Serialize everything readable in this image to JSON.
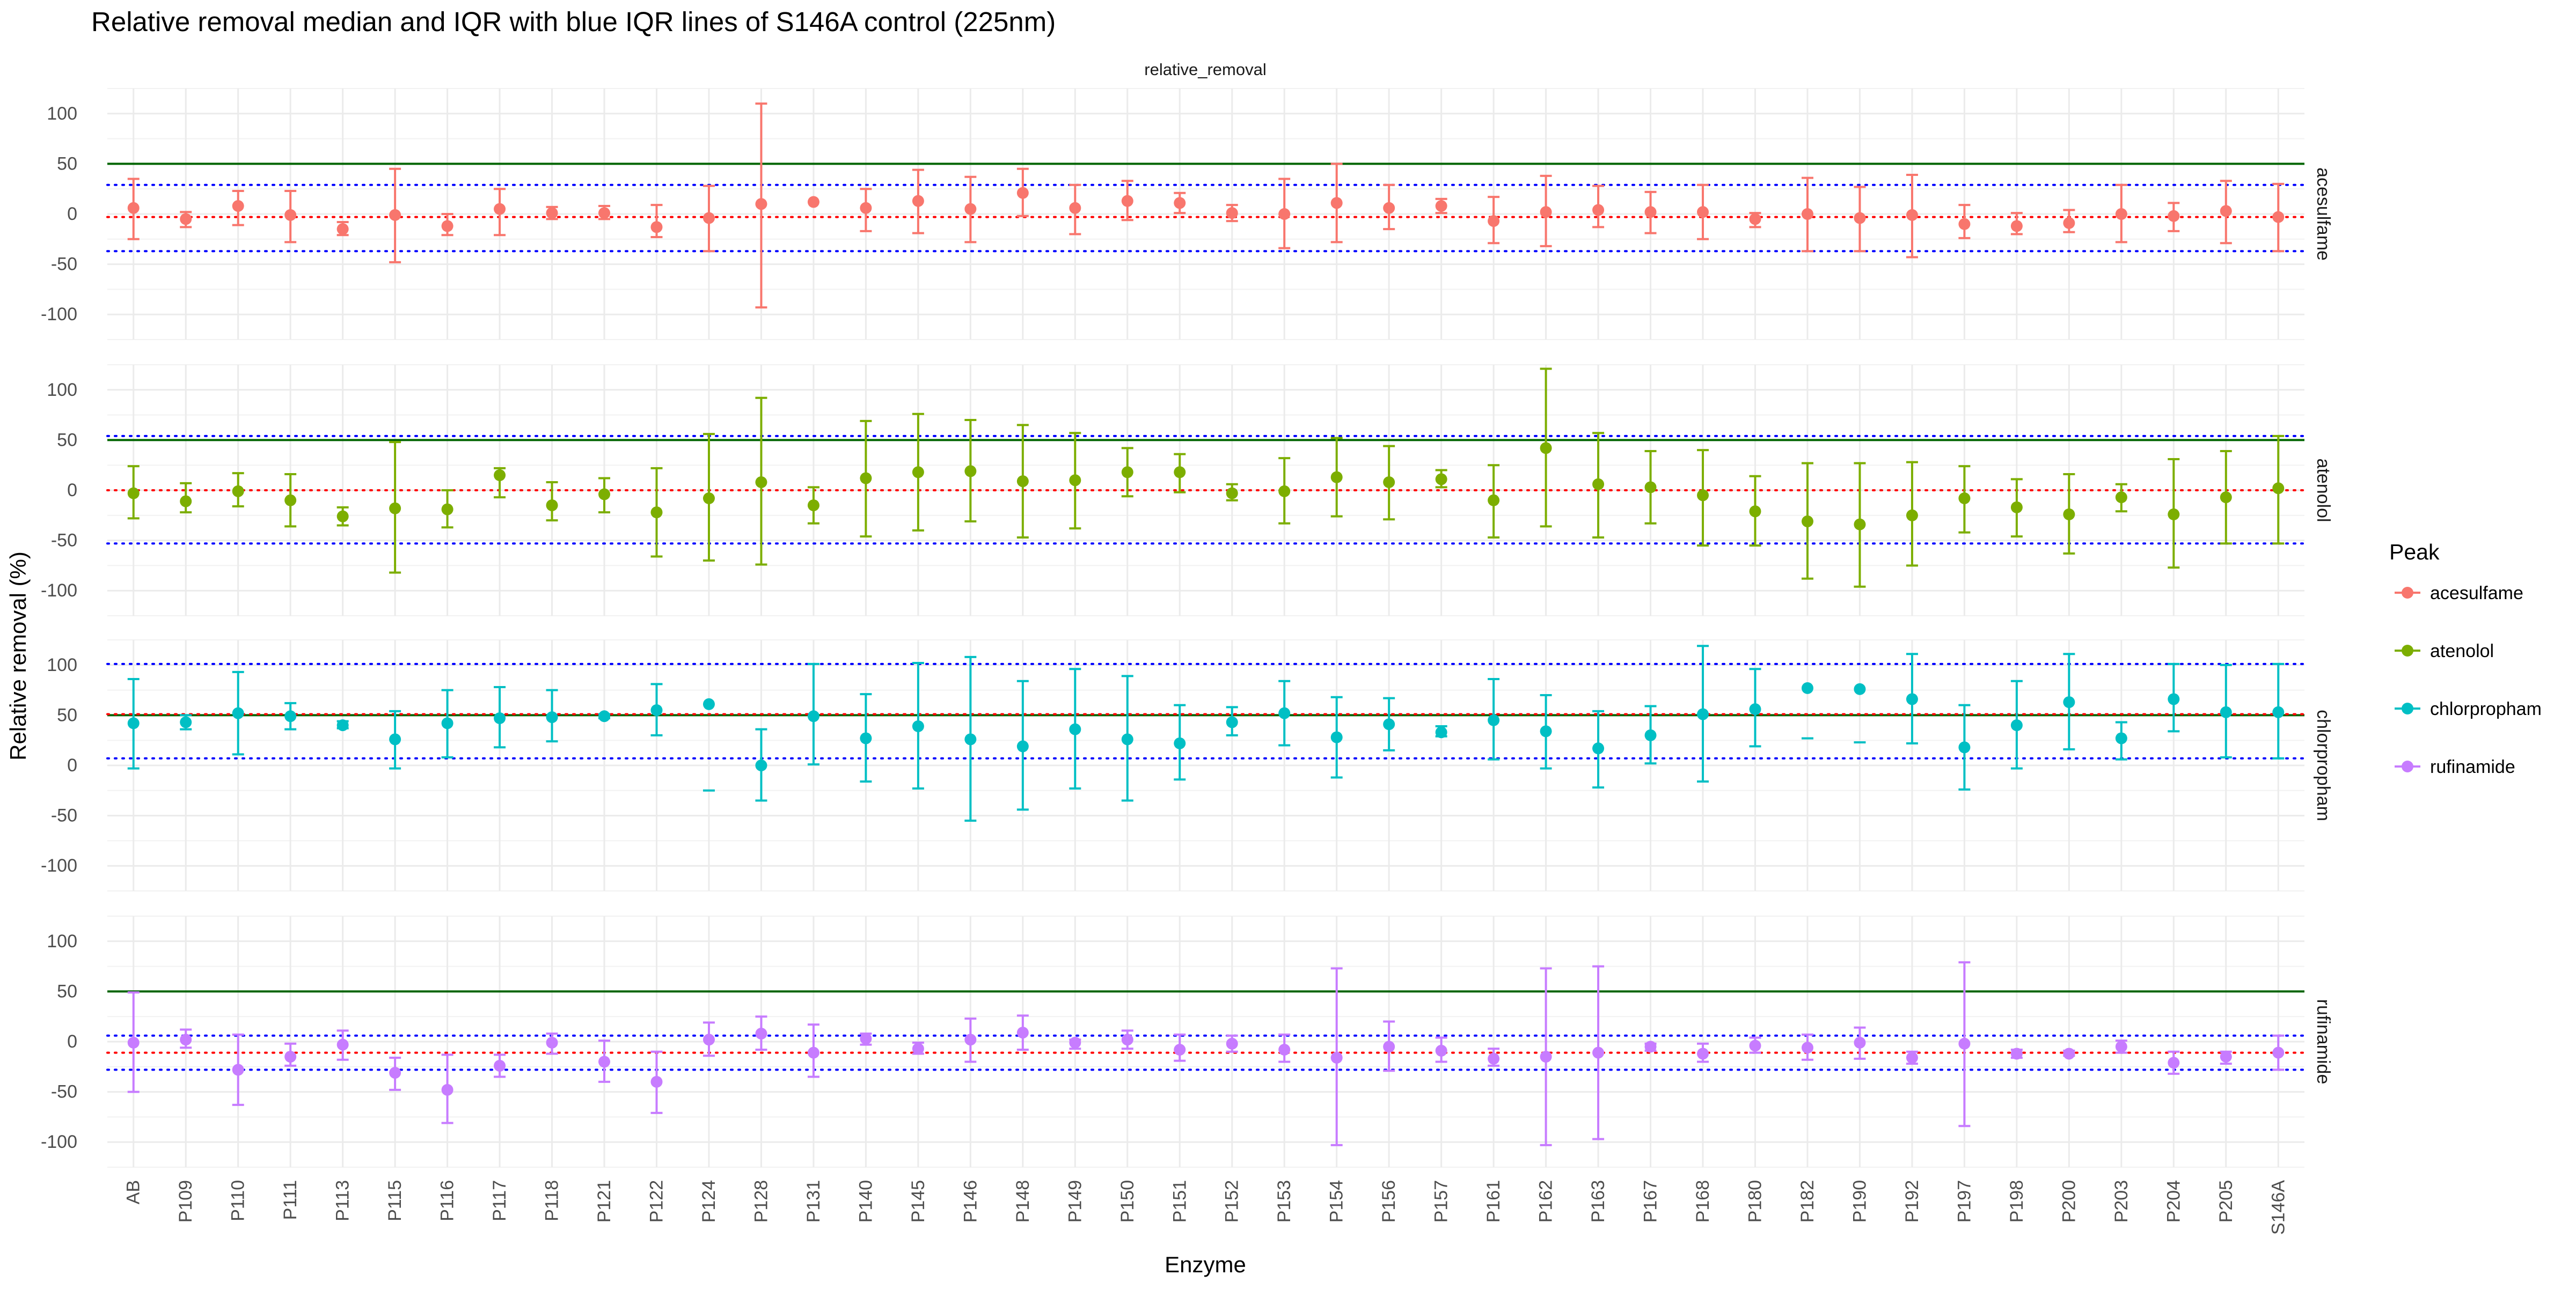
{
  "chart_data": {
    "type": "errorbar",
    "title": "Relative removal median and IQR with blue IQR lines of S146A control (225nm)",
    "facet_strip_top": "relative_removal",
    "xlabel": "Enzyme",
    "ylabel": "Relative removal (%)",
    "ylim": [
      -125,
      125
    ],
    "y_ticks": [
      -100,
      -50,
      0,
      50,
      100
    ],
    "grid": true,
    "legend": {
      "title": "Peak",
      "position": "right"
    },
    "categories": [
      "AB",
      "P109",
      "P110",
      "P111",
      "P113",
      "P115",
      "P116",
      "P117",
      "P118",
      "P121",
      "P122",
      "P124",
      "P128",
      "P131",
      "P140",
      "P145",
      "P146",
      "P148",
      "P149",
      "P150",
      "P151",
      "P152",
      "P153",
      "P154",
      "P156",
      "P157",
      "P161",
      "P162",
      "P163",
      "P167",
      "P168",
      "P180",
      "P182",
      "P190",
      "P192",
      "P197",
      "P198",
      "P200",
      "P203",
      "P204",
      "P205",
      "S146A"
    ],
    "series": [
      {
        "name": "acesulfame",
        "color": "#F8766D",
        "median": [
          6,
          -5,
          8,
          -1,
          -15,
          -1,
          -12,
          5,
          1,
          1,
          -13,
          -4,
          10,
          12,
          6,
          13,
          5,
          21,
          6,
          13,
          11,
          1,
          0,
          11,
          6,
          8,
          -7,
          2,
          4,
          2,
          2,
          -5,
          0,
          -4,
          -1,
          -10,
          -12,
          -9,
          0,
          -2,
          3,
          -3
        ],
        "lower": [
          -25,
          -13,
          -11,
          -28,
          -21,
          -48,
          -21,
          -21,
          -5,
          -5,
          -23,
          -37,
          -93,
          null,
          -17,
          -19,
          -28,
          -2,
          -20,
          -6,
          1,
          -7,
          -34,
          -28,
          -15,
          1,
          -29,
          -32,
          -13,
          -19,
          -25,
          -13,
          -37,
          -37,
          -43,
          -24,
          -20,
          -18,
          -28,
          -17,
          -29,
          -37
        ],
        "upper": [
          35,
          2,
          23,
          23,
          -8,
          45,
          0,
          25,
          7,
          8,
          9,
          28,
          110,
          null,
          25,
          44,
          37,
          45,
          29,
          33,
          21,
          9,
          35,
          50,
          29,
          15,
          17,
          38,
          28,
          22,
          29,
          1,
          36,
          27,
          39,
          9,
          1,
          4,
          29,
          11,
          33,
          30
        ],
        "hline_red": -3,
        "iqr_low": -37,
        "iqr_high": 29,
        "ref_green": 50
      },
      {
        "name": "atenolol",
        "color": "#7CAE00",
        "median": [
          -3,
          -11,
          -1,
          -10,
          -26,
          -18,
          -19,
          15,
          -15,
          -4,
          -22,
          -8,
          8,
          -15,
          12,
          18,
          19,
          9,
          10,
          18,
          18,
          -3,
          -1,
          13,
          8,
          11,
          -10,
          42,
          6,
          3,
          -5,
          -21,
          -31,
          -34,
          -25,
          -8,
          -17,
          -24,
          -7,
          -24,
          -7,
          2
        ],
        "lower": [
          -28,
          -22,
          -16,
          -36,
          -35,
          -82,
          -37,
          -7,
          -30,
          -22,
          -66,
          -70,
          -74,
          -33,
          -46,
          -40,
          -31,
          -47,
          -38,
          -6,
          -2,
          -10,
          -33,
          -26,
          -29,
          3,
          -47,
          -36,
          -47,
          -33,
          -55,
          -55,
          -88,
          -96,
          -75,
          -42,
          -46,
          -63,
          -21,
          -77,
          -53,
          -53
        ],
        "upper": [
          24,
          7,
          17,
          16,
          -17,
          48,
          0,
          22,
          8,
          12,
          22,
          56,
          92,
          3,
          69,
          76,
          70,
          65,
          57,
          42,
          36,
          6,
          32,
          52,
          44,
          20,
          25,
          121,
          57,
          39,
          40,
          14,
          27,
          27,
          28,
          24,
          11,
          16,
          6,
          31,
          39,
          54
        ],
        "hline_red": 0,
        "iqr_low": -53,
        "iqr_high": 54,
        "ref_green": 50
      },
      {
        "name": "chlorpropham",
        "color": "#00BFC4",
        "median": [
          42,
          43,
          52,
          49,
          40,
          26,
          42,
          47,
          48,
          49,
          55,
          61,
          0,
          49,
          27,
          39,
          26,
          19,
          36,
          26,
          22,
          43,
          52,
          28,
          41,
          33,
          45,
          34,
          17,
          30,
          51,
          56,
          77,
          76,
          66,
          18,
          40,
          63,
          27,
          66,
          53,
          53
        ],
        "lower": [
          -3,
          36,
          11,
          36,
          37,
          -3,
          8,
          18,
          24,
          47,
          30,
          -25,
          -35,
          1,
          -16,
          -23,
          -55,
          -44,
          -23,
          -35,
          -14,
          30,
          20,
          -12,
          15,
          29,
          6,
          -3,
          -22,
          2,
          -16,
          19,
          27,
          23,
          22,
          -24,
          -3,
          16,
          6,
          34,
          8,
          7
        ],
        "upper": [
          86,
          50,
          93,
          62,
          44,
          54,
          75,
          78,
          75,
          51,
          81,
          null,
          36,
          101,
          71,
          102,
          108,
          84,
          96,
          89,
          60,
          58,
          84,
          68,
          67,
          39,
          86,
          70,
          54,
          59,
          119,
          96,
          null,
          null,
          111,
          60,
          84,
          111,
          43,
          101,
          100,
          101
        ],
        "hline_red": 51,
        "iqr_low": 7,
        "iqr_high": 101,
        "ref_green": 50
      },
      {
        "name": "rufinamide",
        "color": "#C77CFF",
        "median": [
          -1,
          2,
          -28,
          -15,
          -3,
          -31,
          -48,
          -24,
          -1,
          -20,
          -40,
          2,
          8,
          -11,
          3,
          -7,
          2,
          9,
          -1,
          2,
          -8,
          -2,
          -8,
          -16,
          -5,
          -9,
          -17,
          -15,
          -11,
          -5,
          -12,
          -4,
          -6,
          -1,
          -16,
          -2,
          -12,
          -12,
          -5,
          -21,
          -15,
          -11
        ],
        "lower": [
          -50,
          -6,
          -63,
          -24,
          -18,
          -48,
          -81,
          -35,
          -12,
          -40,
          -71,
          -14,
          -8,
          -35,
          -3,
          -12,
          -20,
          -8,
          -7,
          -7,
          -19,
          -10,
          -20,
          -103,
          -29,
          -20,
          -24,
          -103,
          -97,
          -9,
          -20,
          -11,
          -18,
          -17,
          -22,
          -84,
          -16,
          -14,
          -11,
          -32,
          -22,
          -28
        ],
        "upper": [
          49,
          12,
          7,
          -2,
          11,
          -16,
          -13,
          -13,
          8,
          1,
          -10,
          19,
          25,
          17,
          8,
          -1,
          23,
          26,
          2,
          11,
          7,
          6,
          7,
          73,
          20,
          4,
          -7,
          73,
          75,
          -2,
          -2,
          4,
          7,
          14,
          -10,
          79,
          -8,
          -9,
          1,
          -10,
          -10,
          6
        ],
        "hline_red": -11,
        "iqr_low": -28,
        "iqr_high": 6,
        "ref_green": 50
      }
    ]
  }
}
